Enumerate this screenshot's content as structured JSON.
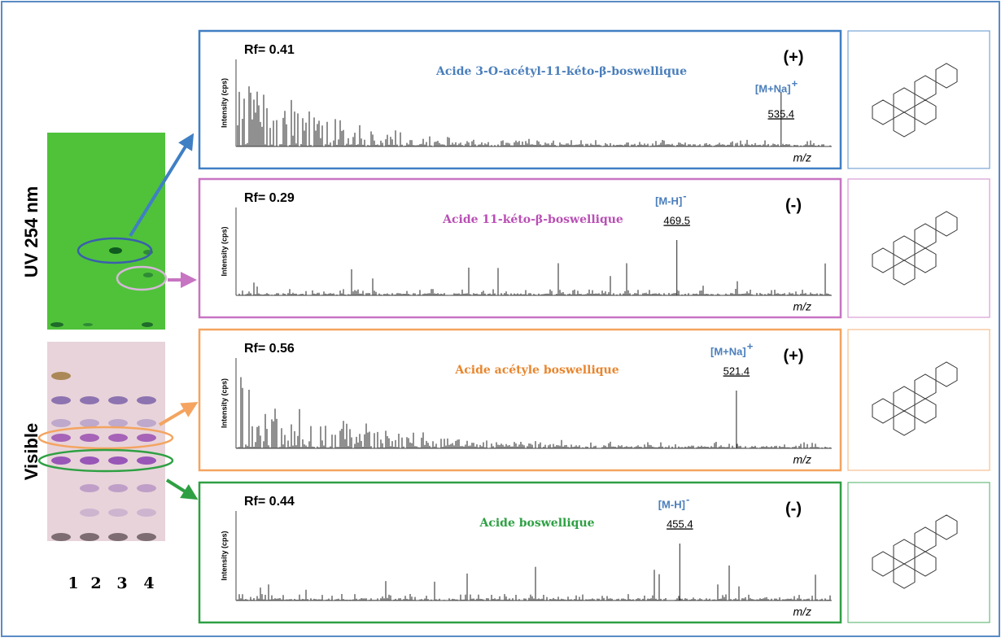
{
  "left": {
    "uv_label": "UV 254 nm",
    "visible_label": "Visible",
    "lanes": [
      "1",
      "2",
      "3",
      "4"
    ]
  },
  "panels": [
    {
      "rf": "Rf= 0.41",
      "compound": "Acide 3-O-acétyl-11-kéto-β-boswellique",
      "polarity": "(+)",
      "ion": "[M+Na]",
      "ion_charge": "+",
      "peak": "535.4",
      "y_axis": "Intensity (cps)",
      "x_axis": "m/z"
    },
    {
      "rf": "Rf= 0.29",
      "compound": "Acide 11-kéto-β-boswellique",
      "polarity": "(-)",
      "ion": "[M-H]",
      "ion_charge": "-",
      "peak": "469.5",
      "y_axis": "Intensity (cps)",
      "x_axis": "m/z"
    },
    {
      "rf": "Rf= 0.56",
      "compound": "Acide acétyle boswellique",
      "polarity": "(+)",
      "ion": "[M+Na]",
      "ion_charge": "+",
      "peak": "521.4",
      "y_axis": "Intensity (cps)",
      "x_axis": "m/z"
    },
    {
      "rf": "Rf= 0.44",
      "compound": "Acide boswellique",
      "polarity": "(-)",
      "ion": "[M-H]",
      "ion_charge": "-",
      "peak": "455.4",
      "y_axis": "Intensity (cps)",
      "x_axis": "m/z"
    }
  ]
}
